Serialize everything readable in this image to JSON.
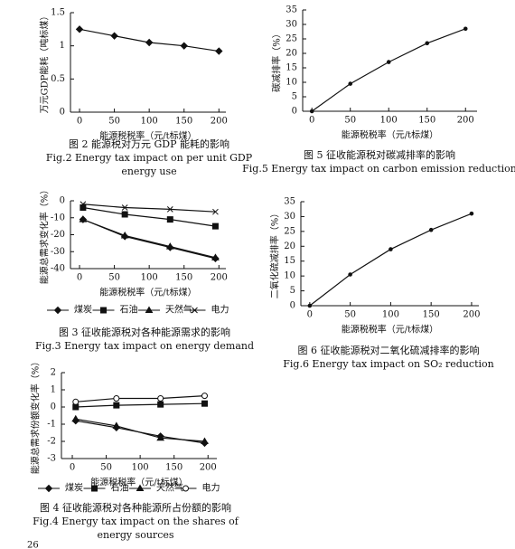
{
  "chart_data": [
    {
      "type": "line",
      "ylabel": "万元GDP能耗（吨标煤）",
      "xlabel": "能源税税率（元/t标煤）",
      "caption": [
        "图 2 能源税对万元 GDP 能耗的影响",
        "Fig.2 Energy tax impact on per unit GDP",
        "energy use"
      ],
      "x": [
        0,
        50,
        100,
        150,
        200
      ],
      "series": [
        {
          "values": [
            1.25,
            1.15,
            1.05,
            1.0,
            0.92
          ],
          "color": "#111",
          "marker": "diamond"
        }
      ],
      "xlim": [
        -13,
        210
      ],
      "xticks": [
        0,
        50,
        100,
        150,
        200
      ],
      "ylim": [
        0,
        1.5
      ],
      "yticks": [
        0,
        0.5,
        1,
        1.5
      ]
    },
    {
      "type": "line",
      "ylabel": "碳减排率（%）",
      "xlabel": "能源税税率（元/t标煤）",
      "caption": [
        "图 5 征收能源税对碳减排率的影响",
        "Fig.5 Energy tax impact on carbon emission reduction"
      ],
      "x": [
        0,
        50,
        100,
        150,
        200
      ],
      "series": [
        {
          "values": [
            0,
            9.5,
            17,
            23.5,
            28.5
          ],
          "color": "#111",
          "marker": "dot"
        }
      ],
      "xlim": [
        -12,
        215
      ],
      "xticks": [
        0,
        50,
        100,
        150,
        200
      ],
      "ylim": [
        0,
        35
      ],
      "yticks": [
        0,
        5,
        10,
        15,
        20,
        25,
        30,
        35
      ]
    },
    {
      "type": "line",
      "ylabel": "能源总需求变化率（%）",
      "xlabel": "能源税税率（元/t标煤）",
      "caption": [
        "图 3 征收能源税对各种能源需求的影响",
        "Fig.3 Energy tax impact on energy demand"
      ],
      "x": [
        5,
        65,
        130,
        195
      ],
      "legend": "bottom",
      "series": [
        {
          "name": "煤炭",
          "values": [
            -11,
            -21,
            -27.5,
            -34
          ],
          "color": "#111",
          "marker": "diamond"
        },
        {
          "name": "石油",
          "values": [
            -4,
            -8,
            -11,
            -15
          ],
          "color": "#111",
          "marker": "square"
        },
        {
          "name": "天然气",
          "values": [
            -11,
            -20.5,
            -27,
            -33.5
          ],
          "color": "#111",
          "marker": "triangle"
        },
        {
          "name": "电力",
          "values": [
            -2,
            -4,
            -5,
            -6.5
          ],
          "color": "#111",
          "marker": "x"
        }
      ],
      "xlim": [
        -13,
        210
      ],
      "xticks": [
        0,
        50,
        100,
        150,
        200
      ],
      "ylim": [
        -40,
        0
      ],
      "yticks": [
        -40,
        -30,
        -20,
        -10,
        0
      ]
    },
    {
      "type": "line",
      "ylabel": "二氧化硫减排率（%）",
      "xlabel": "能源税税率（元/t标煤）",
      "caption": [
        "图 6 征收能源税对二氧化硫减排率的影响",
        "Fig.6 Energy tax impact on SO₂ reduction"
      ],
      "x": [
        0,
        50,
        100,
        150,
        200
      ],
      "series": [
        {
          "values": [
            0,
            10.5,
            19,
            25.5,
            31
          ],
          "color": "#111",
          "marker": "dot"
        }
      ],
      "xlim": [
        -11,
        209
      ],
      "xticks": [
        0,
        50,
        100,
        150,
        200
      ],
      "ylim": [
        0,
        35
      ],
      "yticks": [
        0,
        5,
        10,
        15,
        20,
        25,
        30,
        35
      ]
    },
    {
      "type": "line",
      "ylabel": "能源总需求份额变化率（%）",
      "xlabel": "能源税税率（元/t标煤）",
      "caption": [
        "图 4 征收能源税对各种能源所占份额的影响",
        "Fig.4 Energy tax impact on the shares of",
        "energy sources"
      ],
      "x": [
        5,
        65,
        130,
        195
      ],
      "legend": "bottom",
      "series": [
        {
          "name": "煤炭",
          "values": [
            -0.8,
            -1.2,
            -1.7,
            -2.1
          ],
          "color": "#111",
          "marker": "diamond"
        },
        {
          "name": "石油",
          "values": [
            0,
            0.1,
            0.15,
            0.2
          ],
          "color": "#111",
          "marker": "square"
        },
        {
          "name": "天然气",
          "values": [
            -0.7,
            -1.1,
            -1.8,
            -2.0
          ],
          "color": "#111",
          "marker": "triangle"
        },
        {
          "name": "电力",
          "values": [
            0.3,
            0.5,
            0.5,
            0.65
          ],
          "color": "#111",
          "marker": "circle"
        }
      ],
      "xlim": [
        -16,
        213
      ],
      "xticks": [
        0,
        50,
        100,
        150,
        200
      ],
      "ylim": [
        -3,
        2
      ],
      "yticks": [
        -3,
        -2,
        -1,
        0,
        1,
        2
      ]
    }
  ],
  "page_number": "26"
}
